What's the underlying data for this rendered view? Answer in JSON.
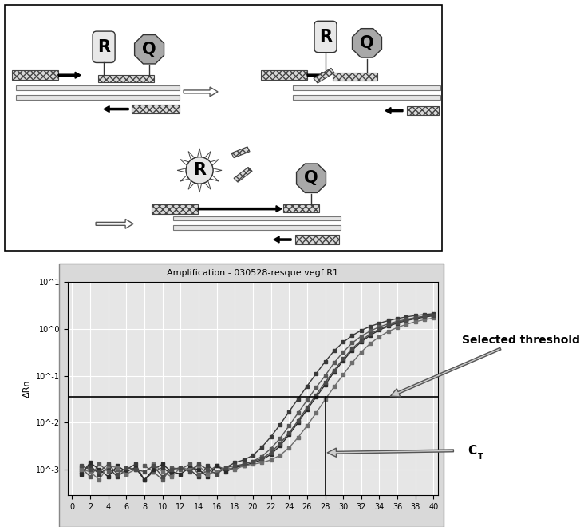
{
  "diagram": {
    "stages": [
      {
        "labels": [
          "R",
          "Q"
        ]
      },
      {
        "labels": [
          "R",
          "Q"
        ]
      },
      {
        "labels": [
          "R",
          "Q"
        ]
      }
    ]
  },
  "chart_data": {
    "type": "line",
    "title": "Amplification - 030528-resque vegf R1",
    "y_label": "ΔRn",
    "log": "y",
    "grid": true,
    "marker": "s",
    "x": [
      1,
      2,
      3,
      4,
      5,
      6,
      7,
      8,
      9,
      10,
      11,
      12,
      13,
      14,
      15,
      16,
      17,
      18,
      19,
      20,
      21,
      22,
      23,
      24,
      25,
      26,
      27,
      28,
      29,
      30,
      31,
      32,
      33,
      34,
      35,
      36,
      37,
      38,
      39,
      40
    ],
    "xlim": [
      -0.5,
      40.5
    ],
    "xticks": [
      0,
      2,
      4,
      6,
      8,
      10,
      12,
      14,
      16,
      18,
      20,
      22,
      24,
      26,
      28,
      30,
      32,
      34,
      36,
      38,
      40
    ],
    "ylim": [
      0.00028,
      10
    ],
    "yticks": [
      {
        "value": 0.001,
        "label": "10^-3"
      },
      {
        "value": 0.01,
        "label": "10^-2"
      },
      {
        "value": 0.1,
        "label": "10^-1"
      },
      {
        "value": 1,
        "label": "10^0"
      },
      {
        "value": 10,
        "label": "10^1"
      }
    ],
    "threshold": 0.035,
    "threshold_label": "Selected threshold",
    "ct": 28,
    "ct_label": "CT",
    "series": [
      {
        "color": "#3a3a3a",
        "values": [
          0.0009,
          0.0012,
          0.0008,
          0.0011,
          0.0007,
          0.001,
          0.0013,
          0.0006,
          0.0009,
          0.0011,
          0.0008,
          null,
          0.001,
          0.0007,
          0.0012,
          0.0009,
          0.0011,
          0.0014,
          0.0016,
          0.002,
          0.003,
          0.005,
          0.009,
          0.017,
          0.032,
          0.06,
          0.11,
          0.2,
          0.34,
          0.52,
          0.72,
          0.93,
          1.13,
          1.32,
          1.5,
          1.66,
          1.8,
          1.92,
          2.02,
          2.1
        ]
      },
      {
        "color": "#5a5a5a",
        "values": [
          0.0011,
          0.0007,
          0.0013,
          0.0009,
          0.001,
          0.0008,
          null,
          0.0012,
          0.0009,
          0.0006,
          0.0011,
          0.001,
          0.0013,
          0.0008,
          0.0009,
          0.0012,
          0.001,
          0.0011,
          0.0013,
          0.0015,
          0.0019,
          0.0028,
          0.0046,
          0.0085,
          0.016,
          0.03,
          0.056,
          0.1,
          0.19,
          0.32,
          0.5,
          0.7,
          0.9,
          1.1,
          1.28,
          1.45,
          1.6,
          1.74,
          1.86,
          1.96
        ]
      },
      {
        "color": "#2a2a2a",
        "values": [
          0.0008,
          0.0014,
          0.001,
          0.0007,
          0.0012,
          0.0009,
          0.0011,
          0.0006,
          0.001,
          0.0013,
          0.0009,
          0.0008,
          0.0011,
          0.001,
          0.0007,
          0.0012,
          0.0009,
          0.0011,
          0.0012,
          0.0014,
          0.0016,
          0.0021,
          0.0032,
          0.0055,
          0.01,
          0.019,
          0.035,
          0.064,
          0.12,
          0.21,
          0.35,
          0.53,
          0.73,
          0.94,
          1.14,
          1.33,
          1.5,
          1.65,
          1.78,
          1.9
        ]
      },
      {
        "color": "#6e6e6e",
        "values": [
          0.001,
          0.0009,
          0.0006,
          0.0012,
          0.0011,
          0.0008,
          0.001,
          null,
          0.0013,
          0.0009,
          0.0007,
          0.0011,
          0.001,
          0.0012,
          0.0008,
          0.0009,
          0.0011,
          0.001,
          0.0012,
          0.0013,
          0.0014,
          0.0016,
          0.002,
          0.0029,
          0.0048,
          0.0086,
          0.016,
          0.031,
          0.058,
          0.105,
          0.19,
          0.32,
          0.49,
          0.68,
          0.88,
          1.07,
          1.25,
          1.42,
          1.57,
          1.7
        ]
      },
      {
        "color": "#4a4a4a",
        "values": [
          0.0012,
          0.001,
          0.0009,
          0.0013,
          0.0008,
          0.0011,
          0.001,
          0.0009,
          0.0012,
          0.0007,
          0.001,
          0.0011,
          0.0009,
          0.0013,
          0.001,
          0.0008,
          0.0011,
          0.0012,
          0.0013,
          0.0015,
          0.0017,
          0.0023,
          0.0036,
          0.006,
          0.011,
          0.021,
          0.039,
          0.072,
          0.13,
          0.23,
          0.38,
          0.57,
          0.78,
          0.99,
          1.19,
          1.38,
          1.55,
          1.7,
          1.83,
          1.95
        ]
      }
    ]
  }
}
